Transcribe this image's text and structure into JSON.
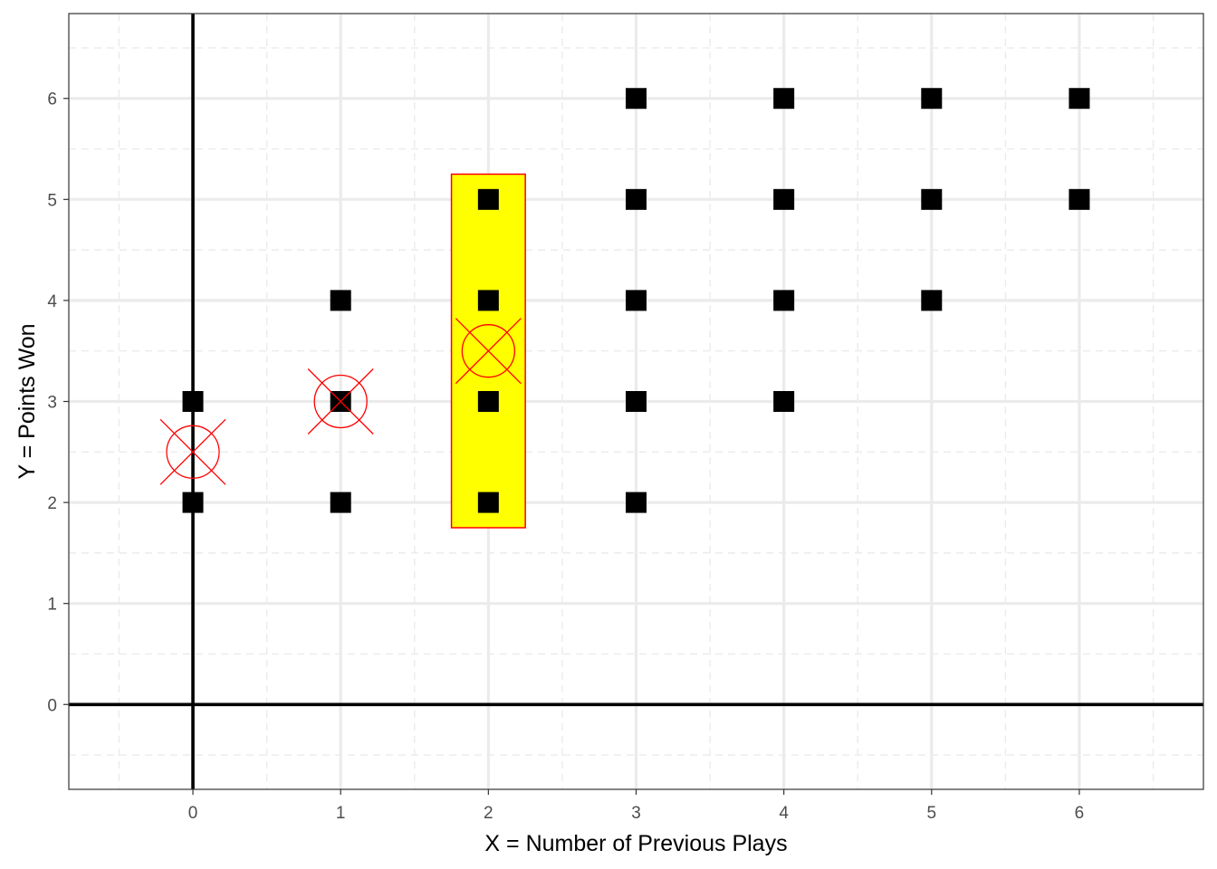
{
  "chart_data": {
    "type": "scatter",
    "xlabel": "X = Number of Previous Plays",
    "ylabel": "Y = Points Won",
    "xlim": [
      -0.84,
      6.84
    ],
    "ylim": [
      -0.84,
      6.84
    ],
    "x_ticks": [
      0,
      1,
      2,
      3,
      4,
      5,
      6
    ],
    "y_ticks": [
      0,
      1,
      2,
      3,
      4,
      5,
      6
    ],
    "x_tick_labels": [
      "0",
      "1",
      "2",
      "3",
      "4",
      "5",
      "6"
    ],
    "y_tick_labels": [
      "0",
      "1",
      "2",
      "3",
      "4",
      "5",
      "6"
    ],
    "grid": true,
    "reference_lines": {
      "x": 0,
      "y": 0
    },
    "points": [
      {
        "x": 0,
        "y": 2
      },
      {
        "x": 0,
        "y": 3
      },
      {
        "x": 1,
        "y": 2
      },
      {
        "x": 1,
        "y": 3
      },
      {
        "x": 1,
        "y": 4
      },
      {
        "x": 2,
        "y": 2
      },
      {
        "x": 2,
        "y": 3
      },
      {
        "x": 2,
        "y": 4
      },
      {
        "x": 2,
        "y": 5
      },
      {
        "x": 3,
        "y": 2
      },
      {
        "x": 3,
        "y": 3
      },
      {
        "x": 3,
        "y": 4
      },
      {
        "x": 3,
        "y": 5
      },
      {
        "x": 3,
        "y": 6
      },
      {
        "x": 4,
        "y": 3
      },
      {
        "x": 4,
        "y": 4
      },
      {
        "x": 4,
        "y": 5
      },
      {
        "x": 4,
        "y": 6
      },
      {
        "x": 5,
        "y": 4
      },
      {
        "x": 5,
        "y": 5
      },
      {
        "x": 5,
        "y": 6
      },
      {
        "x": 6,
        "y": 5
      },
      {
        "x": 6,
        "y": 6
      }
    ],
    "conditional_means": [
      {
        "x": 0,
        "y": 2.5
      },
      {
        "x": 1,
        "y": 3
      },
      {
        "x": 2,
        "y": 3.5
      }
    ],
    "highlight_region": {
      "x": [
        1.75,
        2.25
      ],
      "y": [
        1.75,
        5.25
      ]
    },
    "colors": {
      "points": "#000000",
      "means": "#ff0000",
      "highlight_fill": "#ffff00",
      "highlight_stroke": "#ff0000",
      "grid": "#ebebeb"
    }
  }
}
